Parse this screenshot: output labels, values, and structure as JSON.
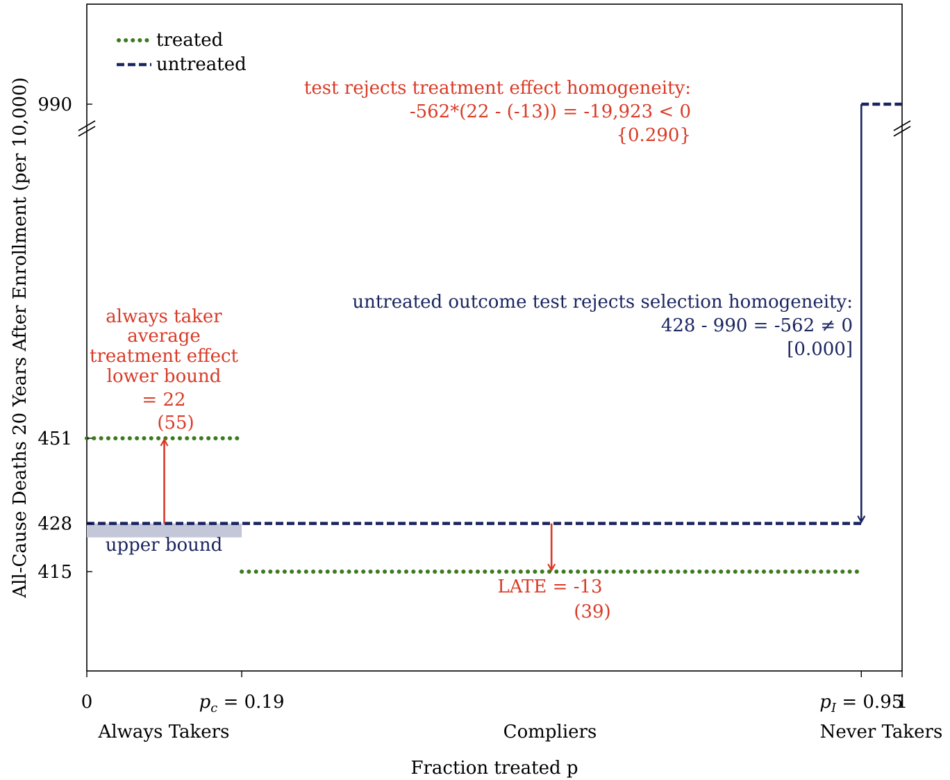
{
  "chart_data": {
    "type": "line",
    "xlabel": "Fraction treated p",
    "ylabel": "All-Cause Deaths 20 Years After Enrollment (per 10,000)",
    "xlim": [
      0,
      1
    ],
    "y_ticks": [
      415,
      428,
      451,
      990
    ],
    "y_axis_break": true,
    "x_ticks": [
      {
        "value": 0,
        "label": "0"
      },
      {
        "value": 0.19,
        "label": "p_c = 0.19"
      },
      {
        "value": 0.95,
        "label": "p_I = 0.95"
      },
      {
        "value": 1,
        "label": "1"
      }
    ],
    "groups": [
      {
        "label": "Always Takers",
        "x_center": 0.095
      },
      {
        "label": "Compliers",
        "x_center": 0.57
      },
      {
        "label": "Never Takers",
        "x_center": 0.975
      }
    ],
    "legend": {
      "placement": "top-left",
      "items": [
        {
          "name": "treated",
          "color": "#3b7a1e",
          "style": "dotted"
        },
        {
          "name": "untreated",
          "color": "#1a2560",
          "style": "dashed"
        }
      ]
    },
    "series": [
      {
        "name": "treated",
        "segments": [
          {
            "x": [
              0,
              0.19
            ],
            "y": 451
          },
          {
            "x": [
              0.19,
              0.95
            ],
            "y": 415
          }
        ]
      },
      {
        "name": "untreated",
        "segments": [
          {
            "x": [
              0,
              0.95
            ],
            "y": 428
          },
          {
            "x": [
              0.95,
              1
            ],
            "y": 990
          }
        ]
      }
    ],
    "shaded_band": {
      "x": [
        0,
        0.19
      ],
      "y_top": 428,
      "label": "upper bound",
      "color": "#c3c7d8"
    },
    "arrows": [
      {
        "x": 0.095,
        "from": 428,
        "to": 451,
        "color": "#d93a26"
      },
      {
        "x": 0.57,
        "from": 428,
        "to": 415,
        "color": "#d93a26"
      },
      {
        "x": 0.95,
        "from": 990,
        "to": 428,
        "color": "#1a2560"
      }
    ],
    "annotations": {
      "always_taker": {
        "lines": [
          "always taker",
          "average",
          "treatment effect",
          "lower bound",
          "= 22"
        ],
        "se": "(55)",
        "color": "#d93a26"
      },
      "late": {
        "text": "LATE = -13",
        "se": "(39)",
        "color": "#d93a26"
      },
      "treatment_test": {
        "lines": [
          "test rejects treatment effect homogeneity:",
          "-562*(22 - (-13)) = -19,923 < 0",
          "{0.290}"
        ],
        "color": "#d93a26"
      },
      "selection_test": {
        "lines": [
          "untreated outcome test rejects selection homogeneity:",
          "428 - 990 = -562 ≠ 0",
          "[0.000]"
        ],
        "color": "#1a2560"
      }
    },
    "colors": {
      "treated": "#3b7a1e",
      "untreated": "#1a2560",
      "annotation_red": "#d93a26",
      "band": "#c3c7d8"
    }
  }
}
